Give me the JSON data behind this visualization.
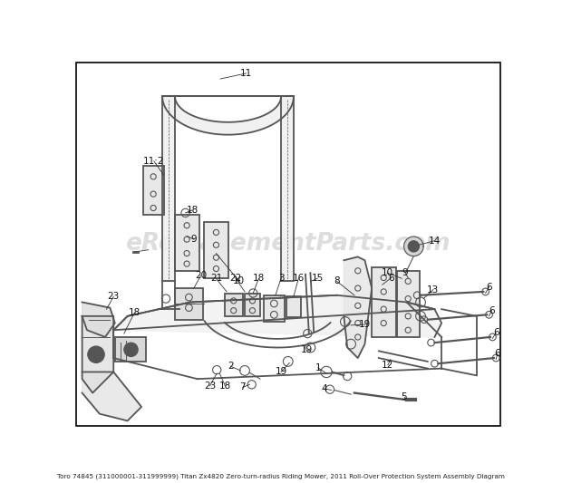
{
  "title": "Toro 74845 (311000001-311999999) Titan Zx4820 Zero-turn-radius Riding Mower, 2011 Roll-Over Protection System Assembly Diagram",
  "watermark": "eReplacementParts.com",
  "bg": "#ffffff",
  "border": "#000000",
  "dc": "#555555",
  "lc": "#aaaaaa",
  "figsize": [
    6.2,
    5.33
  ],
  "dpi": 100
}
